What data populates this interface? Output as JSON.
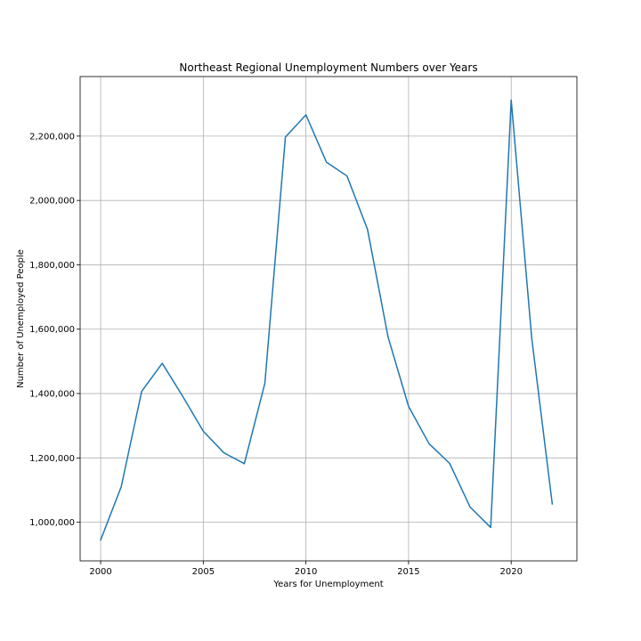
{
  "chart_data": {
    "type": "line",
    "title": "Northeast Regional Unemployment Numbers over Years",
    "xlabel": "Years for Unemployment",
    "ylabel": "Number of Unemployed People",
    "xlim": [
      1999,
      2023.2
    ],
    "ylim": [
      880000,
      2385000
    ],
    "grid": true,
    "line_color": "#1f77b4",
    "x_ticks": [
      2000,
      2005,
      2010,
      2015,
      2020
    ],
    "x_tick_labels": [
      "2000",
      "2005",
      "2010",
      "2015",
      "2020"
    ],
    "y_ticks": [
      1000000,
      1200000,
      1400000,
      1600000,
      1800000,
      2000000,
      2200000
    ],
    "y_tick_labels": [
      "1,000,000",
      "1,200,000",
      "1,400,000",
      "1,600,000",
      "1,800,000",
      "2,000,000",
      "2,200,000"
    ],
    "series": [
      {
        "x": [
          2000,
          2001,
          2002,
          2003,
          2004,
          2005,
          2006,
          2007,
          2008,
          2009,
          2010,
          2011,
          2012,
          2013,
          2014,
          2015,
          2016,
          2017,
          2018,
          2019,
          2020,
          2021,
          2022
        ],
        "values": [
          945000,
          1110000,
          1407000,
          1494000,
          1391000,
          1283000,
          1216000,
          1182000,
          1432000,
          2197000,
          2266000,
          2119000,
          2076000,
          1910000,
          1576000,
          1360000,
          1244000,
          1183000,
          1047000,
          984000,
          2312000,
          1572000,
          1057000
        ]
      }
    ]
  }
}
